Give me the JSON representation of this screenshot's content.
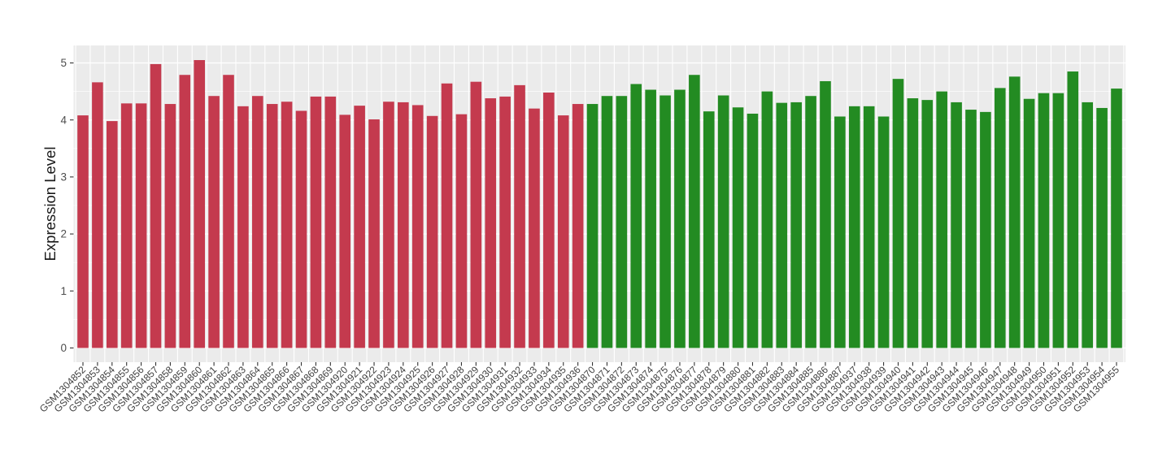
{
  "chart_data": {
    "type": "bar",
    "title": "",
    "xlabel": "",
    "ylabel": "Expression Level",
    "ylim": [
      0,
      5.3
    ],
    "yticks": [
      0,
      1,
      2,
      3,
      4,
      5
    ],
    "grid": true,
    "legend_position": "none",
    "panel_background": "#EBEBEB",
    "grid_color": "#FFFFFF",
    "axis_text_color": "#4D4D4D",
    "axis_title_color": "#1A1A1A",
    "tick_mark_color": "#333333",
    "group_colors": {
      "red": "#C43A4E",
      "green": "#238B22"
    },
    "bars": [
      {
        "label": "GSM1304852",
        "value": 4.08,
        "group": "red"
      },
      {
        "label": "GSM1304853",
        "value": 4.66,
        "group": "red"
      },
      {
        "label": "GSM1304854",
        "value": 3.98,
        "group": "red"
      },
      {
        "label": "GSM1304855",
        "value": 4.29,
        "group": "red"
      },
      {
        "label": "GSM1304856",
        "value": 4.29,
        "group": "red"
      },
      {
        "label": "GSM1304857",
        "value": 4.98,
        "group": "red"
      },
      {
        "label": "GSM1304858",
        "value": 4.28,
        "group": "red"
      },
      {
        "label": "GSM1304859",
        "value": 4.79,
        "group": "red"
      },
      {
        "label": "GSM1304860",
        "value": 5.05,
        "group": "red"
      },
      {
        "label": "GSM1304861",
        "value": 4.42,
        "group": "red"
      },
      {
        "label": "GSM1304862",
        "value": 4.79,
        "group": "red"
      },
      {
        "label": "GSM1304863",
        "value": 4.24,
        "group": "red"
      },
      {
        "label": "GSM1304864",
        "value": 4.42,
        "group": "red"
      },
      {
        "label": "GSM1304865",
        "value": 4.28,
        "group": "red"
      },
      {
        "label": "GSM1304866",
        "value": 4.32,
        "group": "red"
      },
      {
        "label": "GSM1304867",
        "value": 4.16,
        "group": "red"
      },
      {
        "label": "GSM1304868",
        "value": 4.41,
        "group": "red"
      },
      {
        "label": "GSM1304869",
        "value": 4.41,
        "group": "red"
      },
      {
        "label": "GSM1304920",
        "value": 4.09,
        "group": "red"
      },
      {
        "label": "GSM1304921",
        "value": 4.25,
        "group": "red"
      },
      {
        "label": "GSM1304922",
        "value": 4.01,
        "group": "red"
      },
      {
        "label": "GSM1304923",
        "value": 4.32,
        "group": "red"
      },
      {
        "label": "GSM1304924",
        "value": 4.31,
        "group": "red"
      },
      {
        "label": "GSM1304925",
        "value": 4.26,
        "group": "red"
      },
      {
        "label": "GSM1304926",
        "value": 4.07,
        "group": "red"
      },
      {
        "label": "GSM1304927",
        "value": 4.64,
        "group": "red"
      },
      {
        "label": "GSM1304928",
        "value": 4.1,
        "group": "red"
      },
      {
        "label": "GSM1304929",
        "value": 4.67,
        "group": "red"
      },
      {
        "label": "GSM1304930",
        "value": 4.38,
        "group": "red"
      },
      {
        "label": "GSM1304931",
        "value": 4.41,
        "group": "red"
      },
      {
        "label": "GSM1304932",
        "value": 4.61,
        "group": "red"
      },
      {
        "label": "GSM1304933",
        "value": 4.2,
        "group": "red"
      },
      {
        "label": "GSM1304934",
        "value": 4.48,
        "group": "red"
      },
      {
        "label": "GSM1304935",
        "value": 4.08,
        "group": "red"
      },
      {
        "label": "GSM1304936",
        "value": 4.28,
        "group": "red"
      },
      {
        "label": "GSM1304870",
        "value": 4.28,
        "group": "green"
      },
      {
        "label": "GSM1304871",
        "value": 4.42,
        "group": "green"
      },
      {
        "label": "GSM1304872",
        "value": 4.42,
        "group": "green"
      },
      {
        "label": "GSM1304873",
        "value": 4.63,
        "group": "green"
      },
      {
        "label": "GSM1304874",
        "value": 4.53,
        "group": "green"
      },
      {
        "label": "GSM1304875",
        "value": 4.43,
        "group": "green"
      },
      {
        "label": "GSM1304876",
        "value": 4.53,
        "group": "green"
      },
      {
        "label": "GSM1304877",
        "value": 4.79,
        "group": "green"
      },
      {
        "label": "GSM1304878",
        "value": 4.15,
        "group": "green"
      },
      {
        "label": "GSM1304879",
        "value": 4.43,
        "group": "green"
      },
      {
        "label": "GSM1304880",
        "value": 4.22,
        "group": "green"
      },
      {
        "label": "GSM1304881",
        "value": 4.11,
        "group": "green"
      },
      {
        "label": "GSM1304882",
        "value": 4.5,
        "group": "green"
      },
      {
        "label": "GSM1304883",
        "value": 4.3,
        "group": "green"
      },
      {
        "label": "GSM1304884",
        "value": 4.31,
        "group": "green"
      },
      {
        "label": "GSM1304885",
        "value": 4.42,
        "group": "green"
      },
      {
        "label": "GSM1304886",
        "value": 4.68,
        "group": "green"
      },
      {
        "label": "GSM1304887",
        "value": 4.06,
        "group": "green"
      },
      {
        "label": "GSM1304937",
        "value": 4.24,
        "group": "green"
      },
      {
        "label": "GSM1304938",
        "value": 4.24,
        "group": "green"
      },
      {
        "label": "GSM1304939",
        "value": 4.06,
        "group": "green"
      },
      {
        "label": "GSM1304940",
        "value": 4.72,
        "group": "green"
      },
      {
        "label": "GSM1304941",
        "value": 4.38,
        "group": "green"
      },
      {
        "label": "GSM1304942",
        "value": 4.35,
        "group": "green"
      },
      {
        "label": "GSM1304943",
        "value": 4.5,
        "group": "green"
      },
      {
        "label": "GSM1304944",
        "value": 4.31,
        "group": "green"
      },
      {
        "label": "GSM1304945",
        "value": 4.18,
        "group": "green"
      },
      {
        "label": "GSM1304946",
        "value": 4.14,
        "group": "green"
      },
      {
        "label": "GSM1304947",
        "value": 4.56,
        "group": "green"
      },
      {
        "label": "GSM1304948",
        "value": 4.76,
        "group": "green"
      },
      {
        "label": "GSM1304949",
        "value": 4.37,
        "group": "green"
      },
      {
        "label": "GSM1304950",
        "value": 4.47,
        "group": "green"
      },
      {
        "label": "GSM1304951",
        "value": 4.47,
        "group": "green"
      },
      {
        "label": "GSM1304952",
        "value": 4.85,
        "group": "green"
      },
      {
        "label": "GSM1304953",
        "value": 4.31,
        "group": "green"
      },
      {
        "label": "GSM1304954",
        "value": 4.21,
        "group": "green"
      },
      {
        "label": "GSM1304955",
        "value": 4.55,
        "group": "green"
      }
    ]
  }
}
